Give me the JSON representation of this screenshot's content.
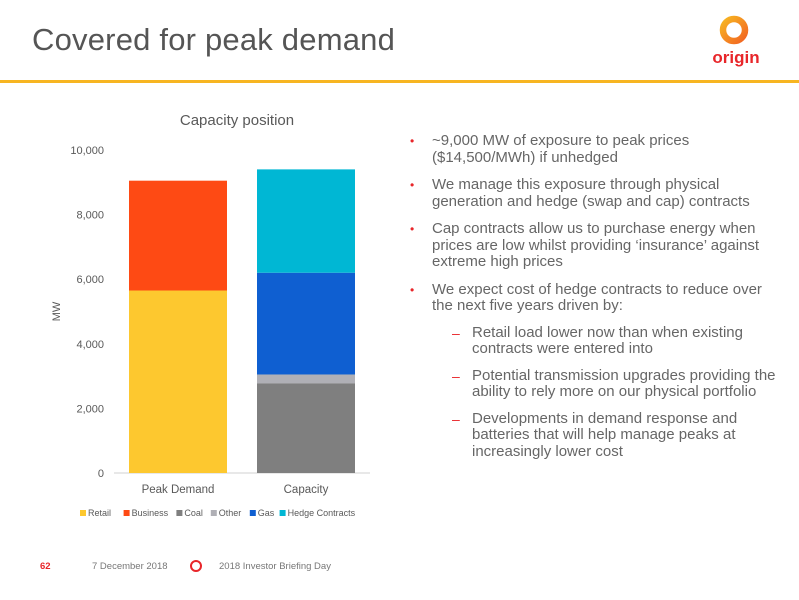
{
  "header": {
    "title": "Covered for peak demand",
    "logo_text": "origin"
  },
  "colors": {
    "accent": "#f7b521",
    "brand_red": "#e8262a"
  },
  "chart_data": {
    "type": "bar",
    "stacked": true,
    "title": "Capacity position",
    "ylabel": "MW",
    "xlabel": "",
    "ylim": [
      0,
      10000
    ],
    "yticks": [
      0,
      2000,
      4000,
      6000,
      8000,
      10000
    ],
    "ytick_labels": [
      "0",
      "2,000",
      "4,000",
      "6,000",
      "8,000",
      "10,000"
    ],
    "categories": [
      "Peak Demand",
      "Capacity"
    ],
    "series": [
      {
        "name": "Retail",
        "color": "#fdc82f",
        "values": [
          5650,
          0
        ]
      },
      {
        "name": "Business",
        "color": "#fe4a14",
        "values": [
          3400,
          0
        ]
      },
      {
        "name": "Coal",
        "color": "#7f7f7f",
        "values": [
          0,
          2780
        ]
      },
      {
        "name": "Other",
        "color": "#b0b0b6",
        "values": [
          0,
          270
        ]
      },
      {
        "name": "Gas",
        "color": "#0f5fd1",
        "values": [
          0,
          3150
        ]
      },
      {
        "name": "Hedge Contracts",
        "color": "#00b7d4",
        "values": [
          0,
          3200
        ]
      }
    ],
    "grid": false,
    "legend_position": "bottom"
  },
  "bullets": [
    {
      "text": "~9,000 MW of exposure to peak prices ($14,500/MWh) if unhedged"
    },
    {
      "text": "We manage this exposure through physical generation and hedge (swap and cap) contracts"
    },
    {
      "text": "Cap contracts allow us to purchase energy when prices are low whilst providing ‘insurance’ against extreme high prices"
    },
    {
      "text": "We expect cost of hedge contracts to reduce over the next five years driven by:"
    }
  ],
  "sub_bullets": [
    {
      "text": "Retail load lower now than when existing contracts were entered into"
    },
    {
      "text": "Potential transmission upgrades providing the ability to rely more on our physical portfolio"
    },
    {
      "text": "Developments in demand response and batteries that will help manage peaks at increasingly lower cost"
    }
  ],
  "footer": {
    "page": "62",
    "date": "7 December 2018",
    "event": "2018 Investor Briefing Day"
  }
}
